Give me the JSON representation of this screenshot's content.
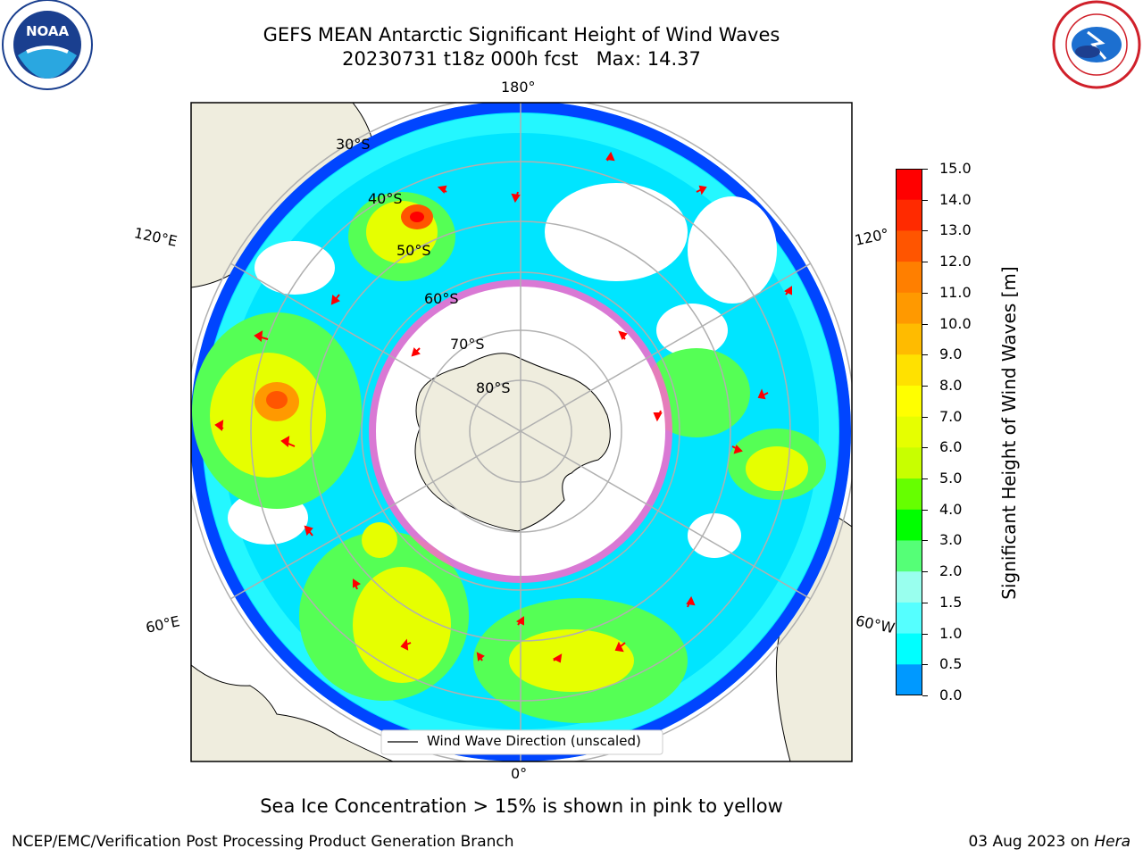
{
  "title": {
    "line1": "GEFS MEAN Antarctic Significant Height of Wind Waves",
    "line2": "20230731 t18z 000h fcst   Max: 14.37"
  },
  "logos": {
    "left": {
      "icon": "noaa-logo-icon",
      "text": "NOAA",
      "ring_text": "NATIONAL OCEANIC AND ATMOSPHERIC ADMINISTRATION · U.S. DEPARTMENT OF COMMERCE"
    },
    "right": {
      "icon": "nws-logo-icon",
      "ring_text": "NATIONAL WEATHER SERVICE"
    }
  },
  "map": {
    "projection": "south-polar-stereographic",
    "longitude_labels": {
      "top": "180°",
      "bottom": "0°",
      "left_upper": "120°E",
      "left_lower": "60°E",
      "right_upper": "120°",
      "right_lower": "60°W"
    },
    "latitude_labels": [
      "30°S",
      "40°S",
      "50°S",
      "60°S",
      "70°S",
      "80°S"
    ],
    "legend": "Wind Wave Direction (unscaled)",
    "field": "Significant Height of Wind Waves",
    "max_value": 14.37,
    "colors": {
      "land": "#efedde",
      "ocean_blank": "#ffffff",
      "arrows": "#ff0000",
      "graticule": "#b0b0b0",
      "sea_ice": "#ff66cc"
    }
  },
  "colorbar": {
    "label": "Significant Height of Wind Waves [m]",
    "ticks": [
      "15.0",
      "14.0",
      "13.0",
      "12.0",
      "11.0",
      "10.0",
      "9.0",
      "8.0",
      "7.0",
      "6.0",
      "5.0",
      "4.0",
      "3.0",
      "2.0",
      "1.5",
      "1.0",
      "0.5",
      "0.0"
    ],
    "colors_top_to_bottom": [
      "#ff0000",
      "#ff2a00",
      "#ff5500",
      "#ff7f00",
      "#ff9900",
      "#ffbb00",
      "#ffe100",
      "#ffff00",
      "#e6ff00",
      "#c8ff00",
      "#66ff00",
      "#00ff00",
      "#55ff77",
      "#99ffee",
      "#55ffff",
      "#00ffff",
      "#0099ff",
      "#0000ff"
    ]
  },
  "subtitle": "Sea Ice Concentration > 15% is shown in pink to yellow",
  "footer": {
    "left": "NCEP/EMC/Verification Post Processing Product Generation Branch",
    "right_date": "03 Aug 2023 on ",
    "right_host": "Hera"
  }
}
